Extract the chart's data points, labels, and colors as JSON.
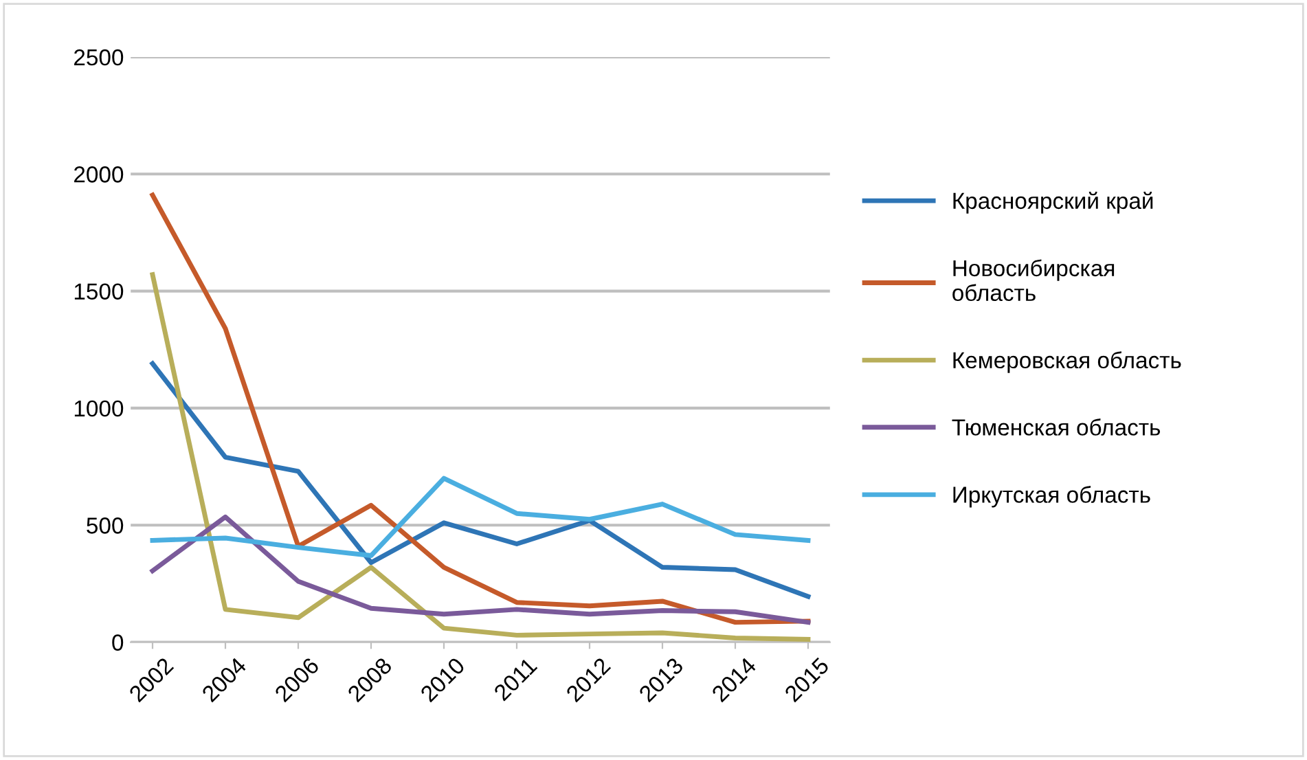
{
  "chart_data": {
    "type": "line",
    "categories": [
      "2002",
      "2004",
      "2006",
      "2008",
      "2010",
      "2011",
      "2012",
      "2013",
      "2014",
      "2015"
    ],
    "ylim": [
      0,
      2500
    ],
    "yticks": [
      0,
      500,
      1000,
      1500,
      2000,
      2500
    ],
    "grid": "y",
    "legend": "right",
    "line_style": "solid",
    "marker": "none",
    "series": [
      {
        "name": "Красноярский край",
        "color": "#2e75b6",
        "values": [
          1190,
          790,
          730,
          340,
          510,
          420,
          520,
          320,
          310,
          195
        ]
      },
      {
        "name": "Новосибирская\nобласть",
        "color": "#c55a2a",
        "values": [
          1910,
          1340,
          410,
          585,
          320,
          170,
          155,
          175,
          85,
          90
        ]
      },
      {
        "name": "Кемеровская область",
        "color": "#b8ae5a",
        "values": [
          1570,
          140,
          105,
          320,
          60,
          30,
          35,
          40,
          18,
          12
        ]
      },
      {
        "name": "Тюменская область",
        "color": "#7a5a9a",
        "values": [
          305,
          535,
          260,
          145,
          120,
          140,
          120,
          135,
          130,
          85
        ]
      },
      {
        "name": "Иркутская область",
        "color": "#4aaee0",
        "values": [
          435,
          445,
          405,
          370,
          700,
          550,
          525,
          590,
          460,
          435
        ]
      }
    ]
  }
}
